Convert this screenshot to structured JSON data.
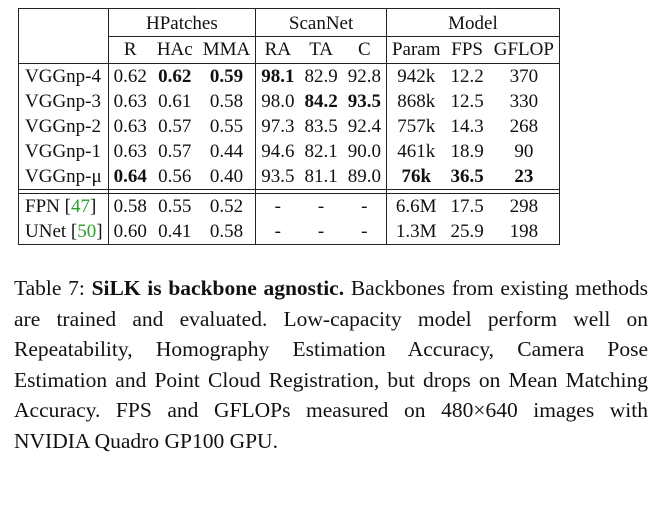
{
  "table": {
    "groups": [
      "HPatches",
      "ScanNet",
      "Model"
    ],
    "columns": [
      "R",
      "HAc",
      "MMA",
      "RA",
      "TA",
      "C",
      "Param",
      "FPS",
      "GFLOP"
    ],
    "rows": [
      {
        "name": "VGGnp-4",
        "values": [
          "0.62",
          "0.62",
          "0.59",
          "98.1",
          "82.9",
          "92.8",
          "942k",
          "12.2",
          "370"
        ],
        "bold": [
          false,
          true,
          true,
          true,
          false,
          false,
          false,
          false,
          false
        ]
      },
      {
        "name": "VGGnp-3",
        "values": [
          "0.63",
          "0.61",
          "0.58",
          "98.0",
          "84.2",
          "93.5",
          "868k",
          "12.5",
          "330"
        ],
        "bold": [
          false,
          false,
          false,
          false,
          true,
          true,
          false,
          false,
          false
        ]
      },
      {
        "name": "VGGnp-2",
        "values": [
          "0.63",
          "0.57",
          "0.55",
          "97.3",
          "83.5",
          "92.4",
          "757k",
          "14.3",
          "268"
        ],
        "bold": [
          false,
          false,
          false,
          false,
          false,
          false,
          false,
          false,
          false
        ]
      },
      {
        "name": "VGGnp-1",
        "values": [
          "0.63",
          "0.57",
          "0.44",
          "94.6",
          "82.1",
          "90.0",
          "461k",
          "18.9",
          "90"
        ],
        "bold": [
          false,
          false,
          false,
          false,
          false,
          false,
          false,
          false,
          false
        ]
      },
      {
        "name": "VGGnp-μ",
        "values": [
          "0.64",
          "0.56",
          "0.40",
          "93.5",
          "81.1",
          "89.0",
          "76k",
          "36.5",
          "23"
        ],
        "bold": [
          true,
          false,
          false,
          false,
          false,
          false,
          true,
          true,
          true
        ]
      }
    ],
    "baselines": [
      {
        "name": "FPN",
        "cite": "47",
        "values": [
          "0.58",
          "0.55",
          "0.52",
          "-",
          "-",
          "-",
          "6.6M",
          "17.5",
          "298"
        ]
      },
      {
        "name": "UNet",
        "cite": "50",
        "values": [
          "0.60",
          "0.41",
          "0.58",
          "-",
          "-",
          "-",
          "1.3M",
          "25.9",
          "198"
        ]
      }
    ]
  },
  "caption": {
    "label": "Table 7:",
    "title": "SiLK is backbone agnostic.",
    "text": "Backbones from existing methods are trained and evaluated. Low-capacity model perform well on Repeatability, Homography Estimation Accuracy, Camera Pose Estimation and Point Cloud Registration, but drops on Mean Matching Accuracy. FPS and GFLOPs measured on 480×640 images with NVIDIA Quadro GP100 GPU."
  }
}
